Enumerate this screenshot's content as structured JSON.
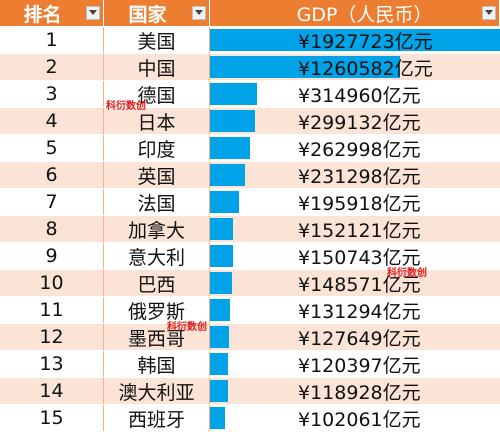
{
  "headers": {
    "rank": "排名",
    "country": "国家",
    "gdp": "GDP（人民币）"
  },
  "colors": {
    "header": "#ed7d31",
    "band": "#fbe4d5",
    "bar": "#00a2e8"
  },
  "rows": [
    {
      "rank": "1",
      "country": "美国",
      "gdp": "¥1927723亿元",
      "value": 1927723
    },
    {
      "rank": "2",
      "country": "中国",
      "gdp": "¥1260582亿元",
      "value": 1260582
    },
    {
      "rank": "3",
      "country": "德国",
      "gdp": "¥314960亿元",
      "value": 314960
    },
    {
      "rank": "4",
      "country": "日本",
      "gdp": "¥299132亿元",
      "value": 299132
    },
    {
      "rank": "5",
      "country": "印度",
      "gdp": "¥262998亿元",
      "value": 262998
    },
    {
      "rank": "6",
      "country": "英国",
      "gdp": "¥231298亿元",
      "value": 231298
    },
    {
      "rank": "7",
      "country": "法国",
      "gdp": "¥195918亿元",
      "value": 195918
    },
    {
      "rank": "8",
      "country": "加拿大",
      "gdp": "¥152121亿元",
      "value": 152121
    },
    {
      "rank": "9",
      "country": "意大利",
      "gdp": "¥150743亿元",
      "value": 150743
    },
    {
      "rank": "10",
      "country": "巴西",
      "gdp": "¥148571亿元",
      "value": 148571
    },
    {
      "rank": "11",
      "country": "俄罗斯",
      "gdp": "¥131294亿元",
      "value": 131294
    },
    {
      "rank": "12",
      "country": "墨西哥",
      "gdp": "¥127649亿元",
      "value": 127649
    },
    {
      "rank": "13",
      "country": "韩国",
      "gdp": "¥120397亿元",
      "value": 120397
    },
    {
      "rank": "14",
      "country": "澳大利亚",
      "gdp": "¥118928亿元",
      "value": 118928
    },
    {
      "rank": "15",
      "country": "西班牙",
      "gdp": "¥102061亿元",
      "value": 102061
    }
  ],
  "watermark": "科衍数创"
}
